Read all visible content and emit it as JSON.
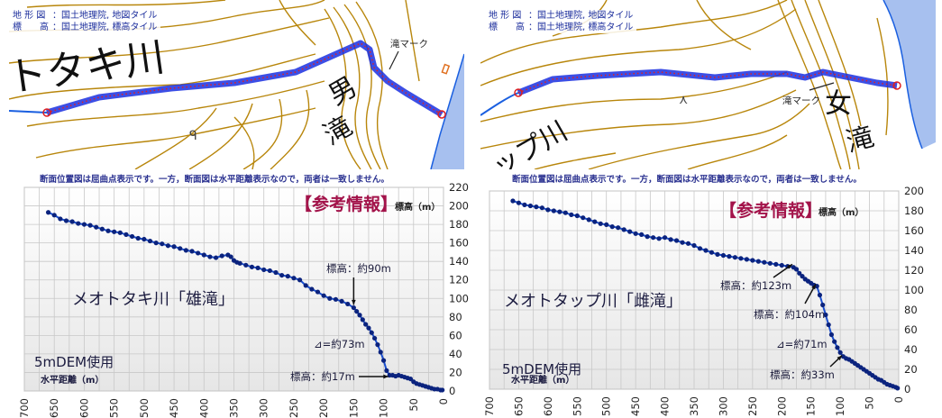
{
  "colors": {
    "contour": "#b8860b",
    "route": "#1a2fe0",
    "route_point": "#e02020",
    "water": "#a7c0ef",
    "series": "#0b237e",
    "series_line": "#1a4fd0",
    "reference": "#a3134a",
    "credit": "#1b2d9c"
  },
  "panels": [
    {
      "map": {
        "credit": [
          {
            "key": "地 形 図",
            "value": "：国土地理院, 地図タイル"
          },
          {
            "key": "標　　高",
            "value": "：国土地理院, 標高タイル"
          }
        ],
        "river_label": "トタキ川",
        "falls_label_1": "男",
        "falls_label_2": "滝",
        "falls_mark_label": "滝マーク"
      },
      "note": "断面位置図は屈曲点表示です。一方，断面図は水平距離表示なので，両者は一致しません。",
      "reference_label": "【参考情報】",
      "title": "メオトタキ川「雄滝」",
      "dem_label": "5mDEM使用",
      "annotations": [
        "標高：約90m",
        "⊿=約73m",
        "標高：約17m"
      ]
    },
    {
      "map": {
        "credit": [
          {
            "key": "地 形 図",
            "value": "：国土地理院, 地図タイル"
          },
          {
            "key": "標　　高",
            "value": "：国土地理院, 標高タイル"
          }
        ],
        "river_label": "ップ川",
        "falls_label_1": "女",
        "falls_label_2": "滝",
        "falls_mark_label": "滝マーク"
      },
      "note": "断面位置図は屈曲点表示です。一方，断面図は水平距離表示なので，両者は一致しません。",
      "reference_label": "【参考情報】",
      "title": "メオトタップ川「雌滝」",
      "dem_label": "5mDEM使用",
      "annotations": [
        "標高：約123m",
        "標高：約104m",
        "⊿=約71m",
        "標高：約33m"
      ]
    }
  ],
  "chart_data": [
    {
      "type": "line",
      "title": "メオトタキ川「雄滝」",
      "xlabel": "水平距離（m）",
      "ylabel": "標高（m）",
      "xlim": [
        700,
        0
      ],
      "ylim": [
        0,
        220
      ],
      "xticks": [
        "700",
        "650",
        "600",
        "550",
        "500",
        "450",
        "400",
        "350",
        "300",
        "250",
        "200",
        "150",
        "100",
        "50",
        "0"
      ],
      "yticks": [
        "220",
        "200",
        "180",
        "160",
        "140",
        "120",
        "100",
        "80",
        "60",
        "40",
        "20",
        "0"
      ],
      "grid": true,
      "series": [
        {
          "name": "雄滝",
          "x": [
            660,
            650,
            640,
            630,
            620,
            610,
            600,
            590,
            580,
            570,
            560,
            550,
            540,
            530,
            520,
            510,
            500,
            490,
            480,
            470,
            460,
            450,
            440,
            430,
            420,
            410,
            400,
            390,
            380,
            370,
            360,
            355,
            350,
            345,
            340,
            330,
            320,
            310,
            300,
            290,
            280,
            270,
            260,
            250,
            240,
            230,
            220,
            210,
            200,
            190,
            180,
            170,
            160,
            150,
            145,
            140,
            135,
            130,
            125,
            120,
            115,
            110,
            105,
            100,
            95,
            90,
            85,
            80,
            75,
            70,
            65,
            60,
            55,
            50,
            45,
            40,
            35,
            30,
            25,
            20,
            15,
            10,
            5,
            2
          ],
          "y": [
            193,
            190,
            186,
            184,
            183,
            181,
            180,
            179,
            177,
            175,
            173,
            172,
            171,
            169,
            167,
            165,
            164,
            162,
            160,
            159,
            157,
            156,
            154,
            152,
            151,
            149,
            147,
            145,
            144,
            146,
            147,
            145,
            141,
            139,
            138,
            136,
            134,
            133,
            131,
            130,
            128,
            125,
            124,
            122,
            120,
            114,
            110,
            107,
            103,
            100,
            99,
            97,
            94,
            90,
            86,
            82,
            77,
            72,
            68,
            63,
            57,
            50,
            42,
            33,
            22,
            17,
            17,
            16,
            17,
            16,
            15,
            14,
            13,
            10,
            8,
            7,
            6,
            5,
            4,
            3,
            2,
            2,
            1,
            1
          ]
        }
      ],
      "annotations": [
        {
          "text": "標高：約90m",
          "x": 150,
          "y": 90
        },
        {
          "text": "⊿=約73m"
        },
        {
          "text": "標高：約17m",
          "x": 90,
          "y": 17
        }
      ]
    },
    {
      "type": "line",
      "title": "メオトタップ川「雌滝」",
      "xlabel": "水平距離（m）",
      "ylabel": "標高（m）",
      "xlim": [
        700,
        0
      ],
      "ylim": [
        0,
        200
      ],
      "xticks": [
        "700",
        "650",
        "600",
        "550",
        "500",
        "450",
        "400",
        "350",
        "300",
        "250",
        "200",
        "150",
        "100",
        "50",
        "0"
      ],
      "yticks": [
        "200",
        "180",
        "160",
        "140",
        "120",
        "100",
        "80",
        "60",
        "40",
        "20",
        "0"
      ],
      "grid": true,
      "series": [
        {
          "name": "雌滝",
          "x": [
            660,
            650,
            640,
            630,
            620,
            610,
            600,
            590,
            580,
            570,
            560,
            550,
            540,
            530,
            520,
            510,
            500,
            490,
            480,
            470,
            460,
            450,
            440,
            430,
            420,
            410,
            400,
            390,
            380,
            370,
            360,
            350,
            340,
            330,
            320,
            310,
            300,
            290,
            280,
            270,
            260,
            250,
            240,
            230,
            220,
            210,
            200,
            190,
            180,
            175,
            170,
            165,
            160,
            155,
            150,
            145,
            140,
            135,
            130,
            125,
            120,
            115,
            110,
            105,
            100,
            95,
            90,
            85,
            80,
            75,
            70,
            65,
            60,
            55,
            50,
            45,
            40,
            35,
            30,
            25,
            20,
            15,
            10,
            5,
            2
          ],
          "y": [
            190,
            188,
            186,
            185,
            184,
            183,
            181,
            180,
            179,
            178,
            176,
            175,
            173,
            171,
            169,
            167,
            166,
            164,
            163,
            161,
            159,
            157,
            156,
            154,
            153,
            152,
            153,
            151,
            150,
            148,
            147,
            145,
            142,
            140,
            138,
            136,
            135,
            134,
            133,
            132,
            131,
            130,
            129,
            128,
            127,
            126,
            125,
            124,
            123,
            121,
            117,
            114,
            111,
            109,
            107,
            105,
            104,
            95,
            85,
            75,
            65,
            55,
            48,
            42,
            37,
            33,
            31,
            30,
            28,
            26,
            24,
            22,
            20,
            18,
            16,
            14,
            12,
            10,
            9,
            7,
            5,
            4,
            3,
            2,
            1
          ]
        }
      ],
      "annotations": [
        {
          "text": "標高：約123m",
          "x": 180,
          "y": 123
        },
        {
          "text": "標高：約104m",
          "x": 140,
          "y": 104
        },
        {
          "text": "⊿=約71m"
        },
        {
          "text": "標高：約33m",
          "x": 95,
          "y": 33
        }
      ]
    }
  ]
}
